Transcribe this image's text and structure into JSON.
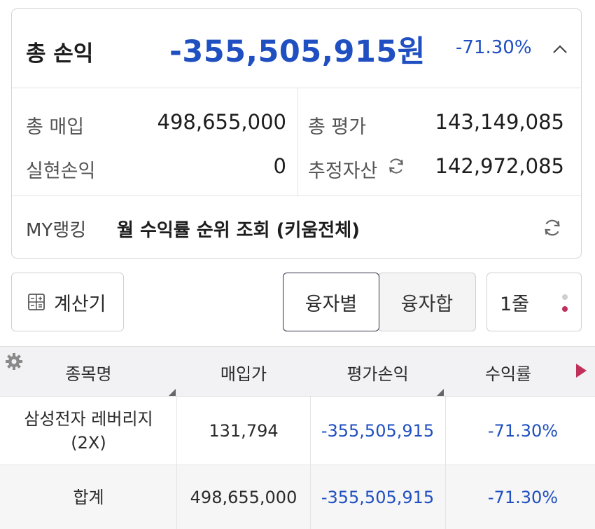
{
  "summary": {
    "title": "총 손익",
    "amount": "-355,505,915원",
    "rate": "-71.30%",
    "stats": {
      "purchase_label": "총 매입",
      "purchase_value": "498,655,000",
      "valuation_label": "총 평가",
      "valuation_value": "143,149,085",
      "realized_label": "실현손익",
      "realized_value": "0",
      "estimated_label": "추정자산",
      "estimated_value": "142,972,085"
    },
    "ranking": {
      "label": "MY랭킹",
      "text": "월 수익률 순위 조회 (키움전체)"
    }
  },
  "controls": {
    "calculator_label": "계산기",
    "segment_active": "융자별",
    "segment_inactive": "융자합",
    "lines_label": "1줄"
  },
  "table": {
    "columns": [
      "종목명",
      "매입가",
      "평가손익",
      "수익률"
    ],
    "rows": [
      {
        "name": "삼성전자 레버리지\n(2X)",
        "price": "131,794",
        "pnl": "-355,505,915",
        "rate": "-71.30%"
      },
      {
        "name": "합계",
        "price": "498,655,000",
        "pnl": "-355,505,915",
        "rate": "-71.30%"
      }
    ]
  },
  "colors": {
    "negative": "#1f4fc0",
    "accent_dot": "#c0305a",
    "muted_dot": "#cfcfcf"
  },
  "icons": [
    "chevron-up-icon",
    "refresh-icon",
    "calculator-icon",
    "more-dots-icon",
    "gear-icon",
    "next-arrow-icon"
  ]
}
